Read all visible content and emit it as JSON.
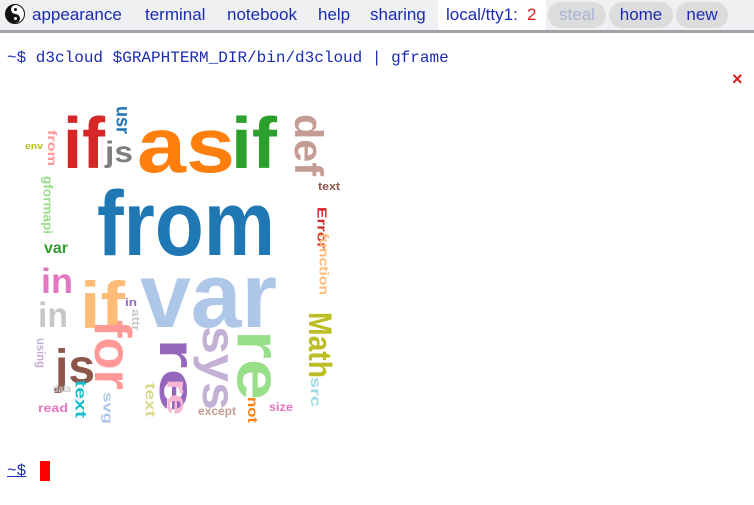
{
  "menu": {
    "items": [
      "appearance",
      "terminal",
      "notebook",
      "help",
      "sharing"
    ],
    "tty_label": "local/tty1:",
    "tty_count": "2",
    "steal": "steal",
    "home": "home",
    "new": "new"
  },
  "terminal": {
    "command": "~$ d3cloud $GRAPHTERM_DIR/bin/d3cloud | gframe",
    "close": "×",
    "prompt": "~$"
  },
  "cloud": {
    "words": [
      {
        "text": "as",
        "color": "#ff7f0e"
      },
      {
        "text": "if",
        "color": "#d62728"
      },
      {
        "text": "if",
        "color": "#2ca02c"
      },
      {
        "text": "usr",
        "color": "#1f77b4"
      },
      {
        "text": "js",
        "color": "#7f7f7f"
      },
      {
        "text": "env",
        "color": "#bcbd22"
      },
      {
        "text": "from",
        "color": "#ff9896"
      },
      {
        "text": "from",
        "color": "#1f77b4"
      },
      {
        "text": "def",
        "color": "#c49c94"
      },
      {
        "text": "gformapi",
        "color": "#98df8a"
      },
      {
        "text": "text",
        "color": "#8c564b"
      },
      {
        "text": "Error",
        "color": "#d62728"
      },
      {
        "text": "function",
        "color": "#ffbb78"
      },
      {
        "text": "var",
        "color": "#2ca02c"
      },
      {
        "text": "in",
        "color": "#e377c2"
      },
      {
        "text": "if",
        "color": "#ffbb78"
      },
      {
        "text": "var",
        "color": "#aec7e8"
      },
      {
        "text": "in",
        "color": "#c7c7c7"
      },
      {
        "text": "in",
        "color": "#9467bd"
      },
      {
        "text": "attr",
        "color": "#c7c7c7"
      },
      {
        "text": "Math",
        "color": "#bcbd22"
      },
      {
        "text": "using",
        "color": "#c5b0d5"
      },
      {
        "text": "js",
        "color": "#8c564b"
      },
      {
        "text": "for",
        "color": "#ff9896"
      },
      {
        "text": "re",
        "color": "#9467bd"
      },
      {
        "text": "sys",
        "color": "#c5b0d5"
      },
      {
        "text": "re",
        "color": "#98df8a"
      },
      {
        "text": "src",
        "color": "#9edae5"
      },
      {
        "text": "data",
        "color": "#c7c7c7"
      },
      {
        "text": "text",
        "color": "#17becf"
      },
      {
        "text": "svg",
        "color": "#aec7e8"
      },
      {
        "text": "read",
        "color": "#e377c2"
      },
      {
        "text": "text",
        "color": "#dbdb8d"
      },
      {
        "text": "re",
        "color": "#f7b6d2"
      },
      {
        "text": "except",
        "color": "#c49c94"
      },
      {
        "text": "not",
        "color": "#ff7f0e"
      },
      {
        "text": "size",
        "color": "#e377c2"
      }
    ]
  }
}
